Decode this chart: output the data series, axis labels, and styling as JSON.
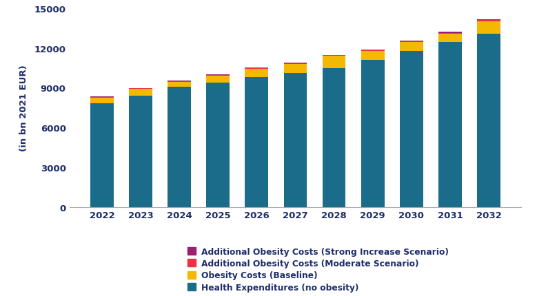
{
  "years": [
    2022,
    2023,
    2024,
    2025,
    2026,
    2027,
    2028,
    2029,
    2030,
    2031,
    2032
  ],
  "health_exp": [
    7850,
    8400,
    9050,
    9400,
    9800,
    10100,
    10500,
    11100,
    11750,
    12450,
    13100
  ],
  "obesity_baseline": [
    400,
    500,
    400,
    500,
    650,
    700,
    900,
    700,
    700,
    600,
    900
  ],
  "obesity_moderate": [
    60,
    60,
    60,
    60,
    60,
    60,
    60,
    60,
    60,
    100,
    100
  ],
  "obesity_strong": [
    30,
    30,
    30,
    30,
    30,
    30,
    30,
    30,
    30,
    60,
    80
  ],
  "color_health": "#1b6b8a",
  "color_baseline": "#f5b800",
  "color_moderate": "#f03040",
  "color_strong": "#9b1f6e",
  "ylabel": "(in bn 2021 EUR)",
  "ylim": [
    0,
    15000
  ],
  "yticks": [
    0,
    3000,
    6000,
    9000,
    12000,
    15000
  ],
  "legend_labels": [
    "Additional Obesity Costs (Strong Increase Scenario)",
    "Additional Obesity Costs (Moderate Scenario)",
    "Obesity Costs (Baseline)",
    "Health Expenditures (no obesity)"
  ],
  "background_color": "#ffffff",
  "text_color": "#1e2d6b",
  "spine_color": "#aaaaaa"
}
